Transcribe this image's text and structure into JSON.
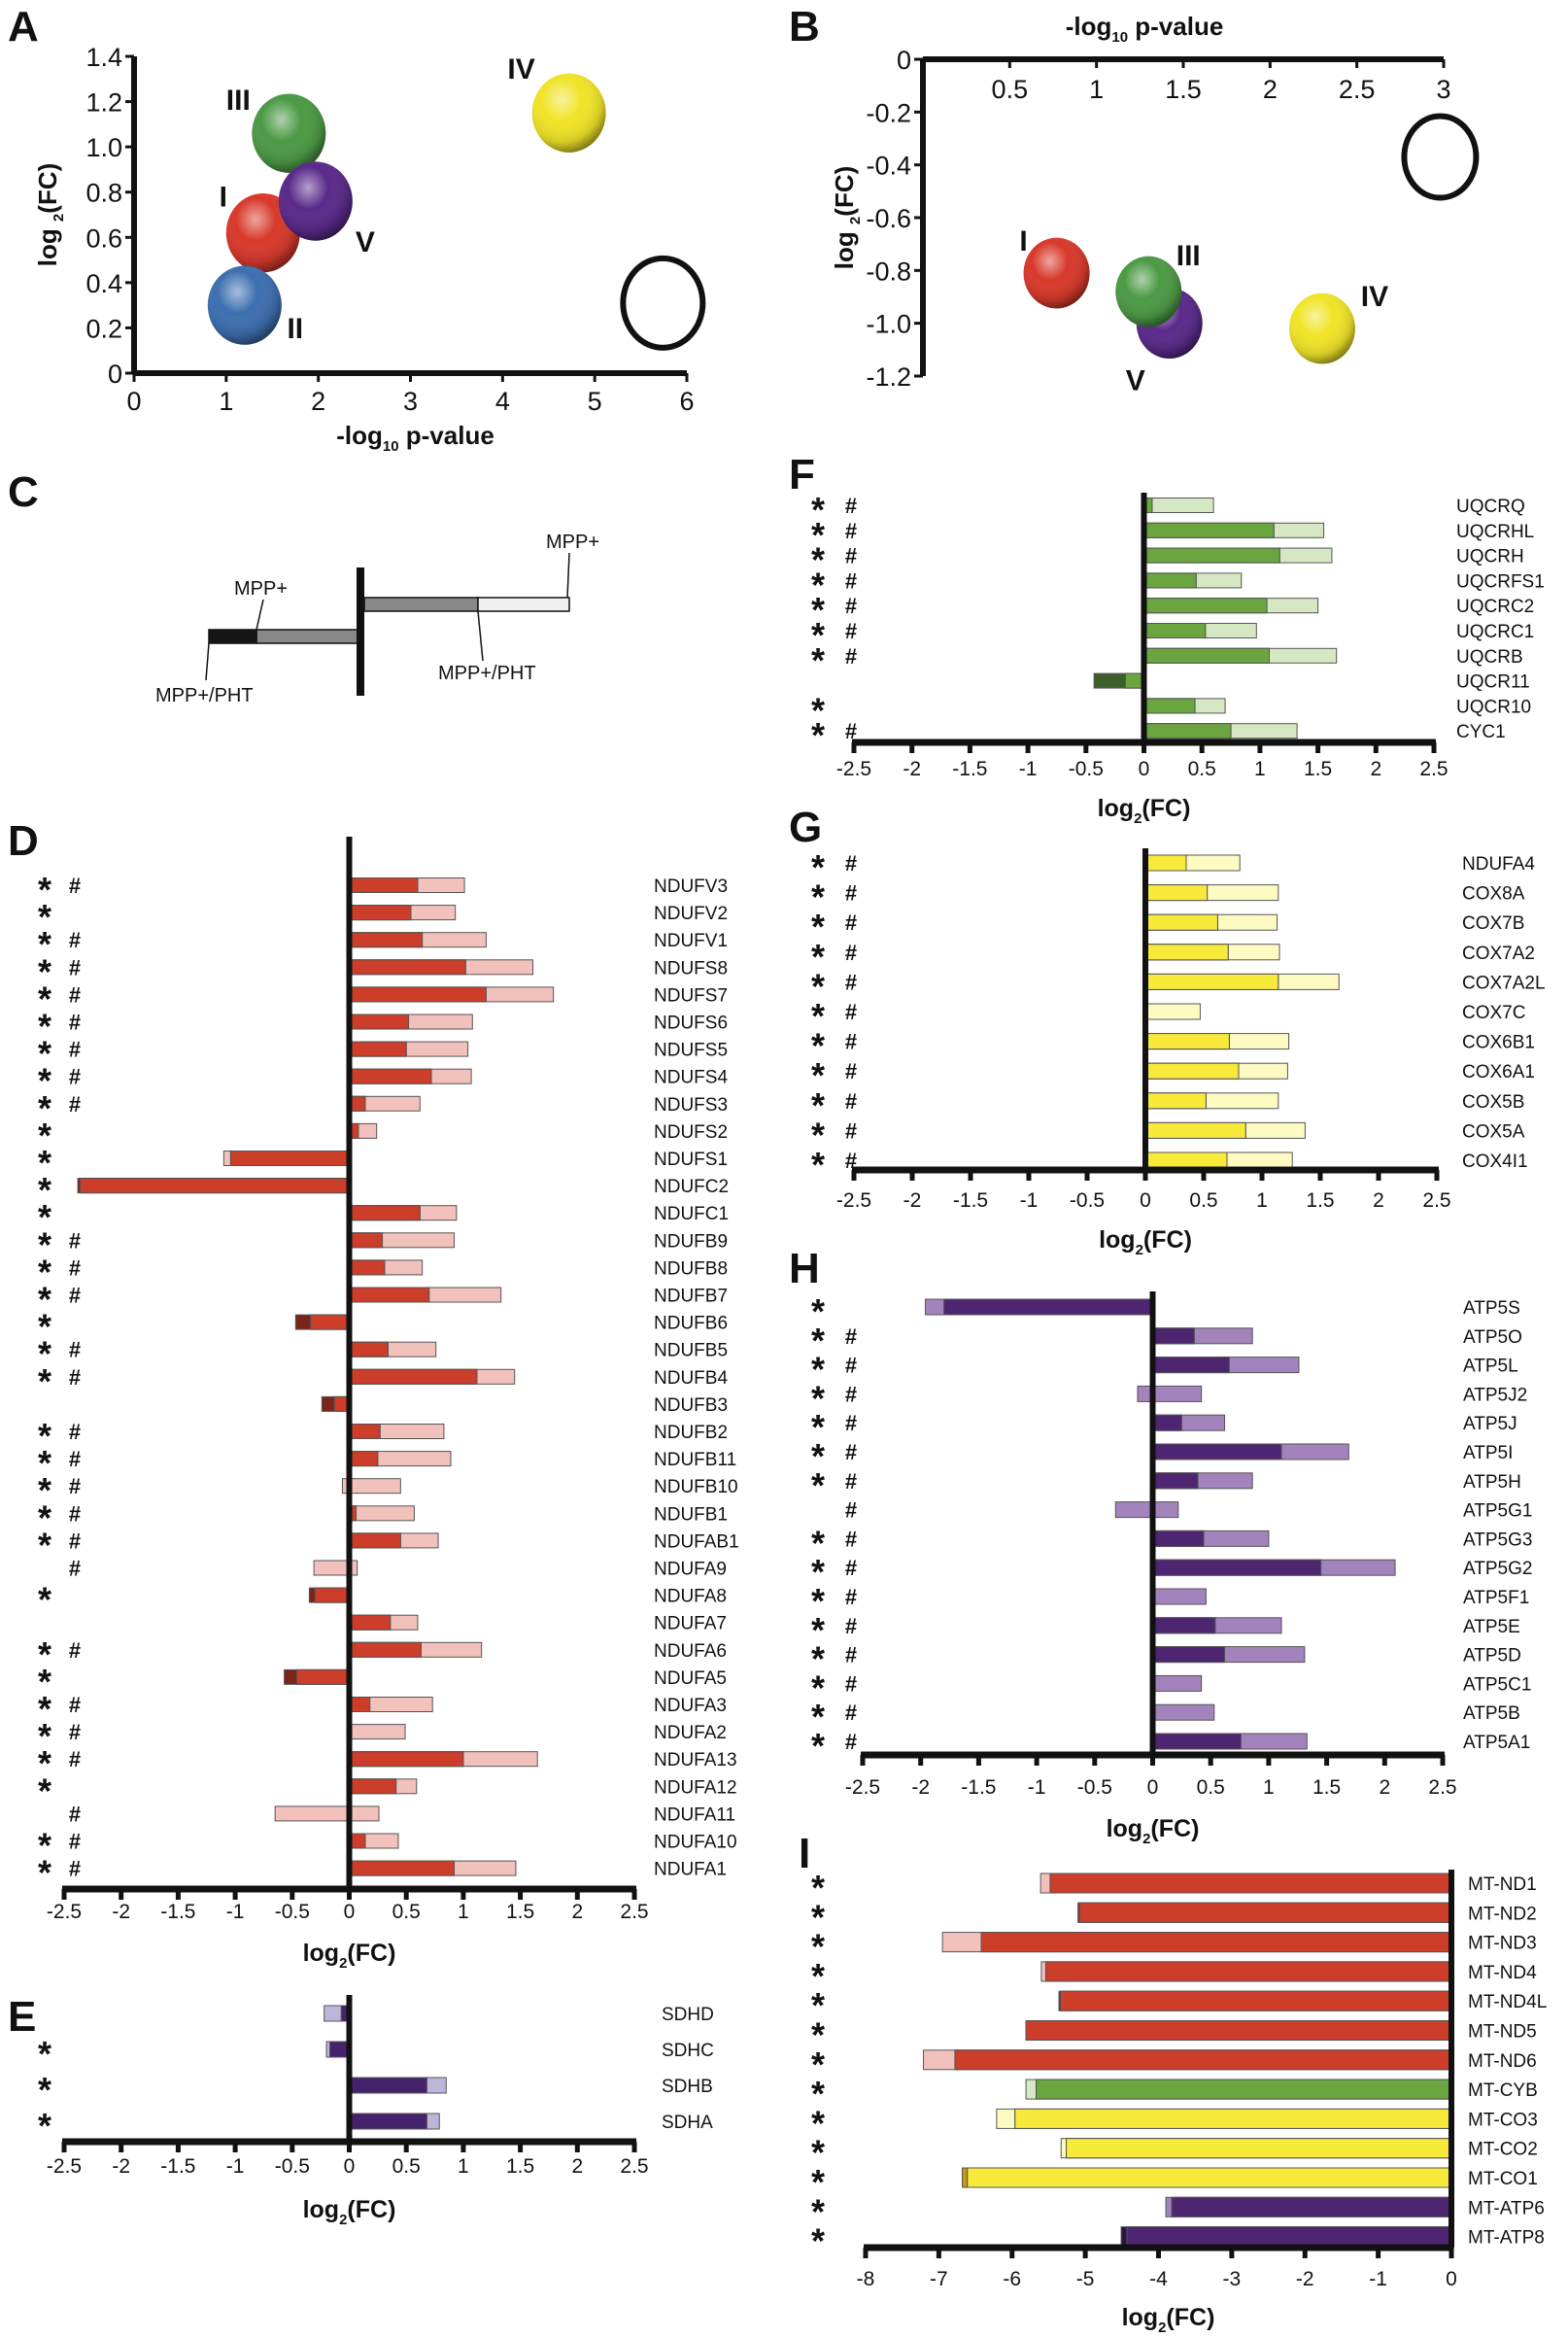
{
  "legend": {
    "panel": "C",
    "mpp_label": "MPP+",
    "pht_label": "MPP+/PHT"
  },
  "colors": {
    "red": {
      "light": "#f2c1bc",
      "mid": "#cc3d2a",
      "dark": "#7a241a"
    },
    "green": {
      "light": "#d6e8c3",
      "mid": "#6ba540",
      "dark": "#3d5f2c"
    },
    "yellow": {
      "light": "#fdfbc2",
      "mid": "#f8ea3a",
      "dark": "#c49a12"
    },
    "purple_e": {
      "light": "#bdb5da",
      "mid": "#45236c",
      "dark": "#2a1445"
    },
    "purple": {
      "light": "#a283bb",
      "mid": "#4e2570",
      "dark": "#2a1445"
    },
    "legend_gray": {
      "light": "#f0f0f0",
      "mid": "#888888",
      "dark": "#151515"
    }
  },
  "chart_data": [
    {
      "panel": "A",
      "type": "scatter",
      "xlabel": {
        "pre": "-log",
        "sub": "10",
        "post": " p-value"
      },
      "ylabel": {
        "pre": "log ",
        "sub": "2",
        "post": "(FC)"
      },
      "xlim": [
        0,
        6
      ],
      "ylim": [
        0,
        1.4
      ],
      "xticks": [
        0,
        1,
        2,
        3,
        4,
        5,
        6
      ],
      "xtick_labels": [
        "0",
        "1",
        "2",
        "3",
        "4",
        "5",
        "6"
      ],
      "yticks": [
        0,
        0.2,
        0.4,
        0.6,
        0.8,
        1.0,
        1.2,
        1.4
      ],
      "ytick_labels": [
        "0",
        "0.2",
        "0.4",
        "0.6",
        "0.8",
        "1.0",
        "1.2",
        "1.4"
      ],
      "points": [
        {
          "label": "III",
          "x": 1.68,
          "y": 1.06,
          "color": "#4c9a45"
        },
        {
          "label": "I",
          "x": 1.4,
          "y": 0.62,
          "color": "#d8392b"
        },
        {
          "label": "V",
          "x": 1.97,
          "y": 0.76,
          "color": "#5a2a8a"
        },
        {
          "label": "II",
          "x": 1.2,
          "y": 0.3,
          "color": "#3d6fb0"
        },
        {
          "label": "IV",
          "x": 4.72,
          "y": 1.15,
          "color": "#f0e428"
        }
      ],
      "reference_circle": {
        "x": 5.74,
        "y": 0.31
      }
    },
    {
      "panel": "B",
      "type": "scatter",
      "xlabel": {
        "pre": "-log",
        "sub": "10",
        "post": " p-value"
      },
      "ylabel": {
        "pre": "log ",
        "sub": "2",
        "post": "(FC)"
      },
      "xlim": [
        0,
        3
      ],
      "ylim": [
        -1.2,
        0
      ],
      "xticks": [
        0.5,
        1,
        1.5,
        2,
        2.5,
        3
      ],
      "xtick_labels": [
        "0.5",
        "1",
        "1.5",
        "2",
        "2.5",
        "3"
      ],
      "yticks": [
        0,
        -0.2,
        -0.4,
        -0.6,
        -0.8,
        -1.0,
        -1.2
      ],
      "ytick_labels": [
        "0",
        "-0.2",
        "-0.4",
        "-0.6",
        "-0.8",
        "-1.0",
        "-1.2"
      ],
      "points": [
        {
          "label": "I",
          "x": 0.77,
          "y": -0.81,
          "color": "#d8392b"
        },
        {
          "label": "V",
          "x": 1.42,
          "y": -1.0,
          "color": "#5a2a8a"
        },
        {
          "label": "III",
          "x": 1.3,
          "y": -0.88,
          "color": "#4c9a45"
        },
        {
          "label": "IV",
          "x": 2.3,
          "y": -1.02,
          "color": "#f0e428"
        }
      ],
      "reference_circle": {
        "x": 2.98,
        "y": -0.37
      }
    },
    {
      "panel": "D",
      "type": "bar",
      "palette": "red",
      "xlabel": {
        "pre": "log",
        "sub": "2",
        "post": "(FC)"
      },
      "xlim": [
        -2.5,
        2.5
      ],
      "xticks": [
        -2.5,
        -2,
        -1.5,
        -1,
        -0.5,
        0,
        0.5,
        1,
        1.5,
        2,
        2.5
      ],
      "xtick_labels": [
        "-2.5",
        "-2",
        "-1.5",
        "-1",
        "-0.5",
        "0",
        "0.5",
        "1",
        "1.5",
        "2",
        "2.5"
      ],
      "genes": [
        "NDUFV3",
        "NDUFV2",
        "NDUFV1",
        "NDUFS8",
        "NDUFS7",
        "NDUFS6",
        "NDUFS5",
        "NDUFS4",
        "NDUFS3",
        "NDUFS2",
        "NDUFS1",
        "NDUFC2",
        "NDUFC1",
        "NDUFB9",
        "NDUFB8",
        "NDUFB7",
        "NDUFB6",
        "NDUFB5",
        "NDUFB4",
        "NDUFB3",
        "NDUFB2",
        "NDUFB11",
        "NDUFB10",
        "NDUFB1",
        "NDUFAB1",
        "NDUFA9",
        "NDUFA8",
        "NDUFA7",
        "NDUFA6",
        "NDUFA5",
        "NDUFA3",
        "NDUFA2",
        "NDUFA13",
        "NDUFA12",
        "NDUFA11",
        "NDUFA10",
        "NDUFA1"
      ],
      "mpp": [
        1.01,
        0.93,
        1.2,
        1.61,
        1.79,
        1.08,
        1.04,
        1.07,
        0.62,
        0.24,
        -1.1,
        -2.36,
        0.94,
        0.92,
        0.64,
        1.33,
        -0.34,
        0.76,
        1.45,
        -0.13,
        0.83,
        0.89,
        0.45,
        0.57,
        0.78,
        -0.31,
        -0.3,
        0.6,
        1.16,
        -0.46,
        0.73,
        0.49,
        1.65,
        0.59,
        0.26,
        0.43,
        1.46
      ],
      "pht": [
        0.6,
        0.54,
        0.64,
        1.02,
        1.2,
        0.52,
        0.5,
        0.72,
        0.14,
        0.08,
        -1.04,
        -2.38,
        0.62,
        0.29,
        0.31,
        0.7,
        -0.47,
        0.34,
        1.12,
        -0.24,
        0.27,
        0.25,
        -0.06,
        0.06,
        0.45,
        0.07,
        -0.35,
        0.36,
        0.63,
        -0.57,
        0.18,
        0,
        1.0,
        0.41,
        -0.65,
        0.14,
        0.92
      ],
      "star": [
        true,
        true,
        true,
        true,
        true,
        true,
        true,
        true,
        true,
        true,
        true,
        true,
        true,
        true,
        true,
        true,
        true,
        true,
        true,
        false,
        true,
        true,
        true,
        true,
        true,
        false,
        true,
        false,
        true,
        true,
        true,
        true,
        true,
        true,
        false,
        true,
        true
      ],
      "hash": [
        true,
        false,
        true,
        true,
        true,
        true,
        true,
        true,
        true,
        false,
        false,
        false,
        false,
        true,
        true,
        true,
        false,
        true,
        true,
        false,
        true,
        true,
        true,
        true,
        true,
        true,
        false,
        false,
        true,
        false,
        true,
        true,
        true,
        false,
        true,
        true,
        true
      ],
      "star_symbol": "*",
      "hash_symbol": "#"
    },
    {
      "panel": "E",
      "type": "bar",
      "palette": "purple_e",
      "xlabel": {
        "pre": "log",
        "sub": "2",
        "post": "(FC)"
      },
      "xlim": [
        -2.5,
        2.5
      ],
      "xticks": [
        -2.5,
        -2,
        -1.5,
        -1,
        -0.5,
        0,
        0.5,
        1,
        1.5,
        2,
        2.5
      ],
      "xtick_labels": [
        "-2.5",
        "-2",
        "-1.5",
        "-1",
        "-0.5",
        "0",
        "0.5",
        "1",
        "1.5",
        "2",
        "2.5"
      ],
      "genes": [
        "SDHD",
        "SDHC",
        "SDHB",
        "SDHA"
      ],
      "mpp": [
        -0.22,
        -0.2,
        0.85,
        0.79
      ],
      "pht": [
        -0.07,
        -0.17,
        0.68,
        0.68
      ],
      "star": [
        false,
        true,
        true,
        true
      ],
      "hash": [
        false,
        false,
        false,
        false
      ],
      "star_symbol": "*",
      "hash_symbol": "#"
    },
    {
      "panel": "F",
      "type": "bar",
      "palette": "green",
      "xlabel": {
        "pre": "log",
        "sub": "2",
        "post": "(FC)"
      },
      "xlim": [
        -2.5,
        2.5
      ],
      "xticks": [
        -2.5,
        -2,
        -1.5,
        -1,
        -0.5,
        0,
        0.5,
        1,
        1.5,
        2,
        2.5
      ],
      "xtick_labels": [
        "-2.5",
        "-2",
        "-1.5",
        "-1",
        "-0.5",
        "0",
        "0.5",
        "1",
        "1.5",
        "2",
        "2.5"
      ],
      "genes": [
        "UQCRQ",
        "UQCRHL",
        "UQCRH",
        "UQCRFS1",
        "UQCRC2",
        "UQCRC1",
        "UQCRB",
        "UQCR11",
        "UQCR10",
        "CYC1"
      ],
      "mpp": [
        0.6,
        1.55,
        1.62,
        0.84,
        1.5,
        0.97,
        1.66,
        -0.16,
        0.7,
        1.32
      ],
      "pht": [
        0.07,
        1.12,
        1.17,
        0.45,
        1.06,
        0.53,
        1.08,
        -0.43,
        0.44,
        0.75
      ],
      "star": [
        true,
        true,
        true,
        true,
        true,
        true,
        true,
        false,
        true,
        true
      ],
      "hash": [
        true,
        true,
        true,
        true,
        true,
        true,
        true,
        false,
        false,
        true
      ],
      "star_symbol": "*",
      "hash_symbol": "#"
    },
    {
      "panel": "G",
      "type": "bar",
      "palette": "yellow",
      "xlabel": {
        "pre": "log",
        "sub": "2",
        "post": "(FC)"
      },
      "xlim": [
        -2.5,
        2.5
      ],
      "xticks": [
        -2.5,
        -2,
        -1.5,
        -1,
        -0.5,
        0,
        0.5,
        1,
        1.5,
        2,
        2.5
      ],
      "xtick_labels": [
        "-2.5",
        "-2",
        "-1.5",
        "-1",
        "-0.5",
        "0",
        "0.5",
        "1",
        "1.5",
        "2",
        "2.5"
      ],
      "genes": [
        "NDUFA4",
        "COX8A",
        "COX7B",
        "COX7A2",
        "COX7A2L",
        "COX7C",
        "COX6B1",
        "COX6A1",
        "COX5B",
        "COX5A",
        "COX4I1"
      ],
      "mpp": [
        0.81,
        1.14,
        1.13,
        1.15,
        1.66,
        0.47,
        1.23,
        1.22,
        1.14,
        1.37,
        1.26
      ],
      "pht": [
        0.35,
        0.53,
        0.62,
        0.71,
        1.14,
        0,
        0.72,
        0.8,
        0.52,
        0.86,
        0.7
      ],
      "star": [
        true,
        true,
        true,
        true,
        true,
        true,
        true,
        true,
        true,
        true,
        true
      ],
      "hash": [
        true,
        true,
        true,
        true,
        true,
        true,
        true,
        true,
        true,
        true,
        true
      ],
      "star_symbol": "*",
      "hash_symbol": "#"
    },
    {
      "panel": "H",
      "type": "bar",
      "palette": "purple",
      "xlabel": {
        "pre": "log",
        "sub": "2",
        "post": "(FC)"
      },
      "xlim": [
        -2.5,
        2.5
      ],
      "xticks": [
        -2.5,
        -2,
        -1.5,
        -1,
        -0.5,
        0,
        0.5,
        1,
        1.5,
        2,
        2.5
      ],
      "xtick_labels": [
        "-2.5",
        "-2",
        "-1.5",
        "-1",
        "-0.5",
        "0",
        "0.5",
        "1",
        "1.5",
        "2",
        "2.5"
      ],
      "genes": [
        "ATP5S",
        "ATP5O",
        "ATP5L",
        "ATP5J2",
        "ATP5J",
        "ATP5I",
        "ATP5H",
        "ATP5G1",
        "ATP5G3",
        "ATP5G2",
        "ATP5F1",
        "ATP5E",
        "ATP5D",
        "ATP5C1",
        "ATP5B",
        "ATP5A1"
      ],
      "mpp": [
        -1.96,
        0.86,
        1.26,
        0.42,
        0.62,
        1.69,
        0.86,
        0.22,
        1.0,
        2.09,
        0.46,
        1.11,
        1.31,
        0.42,
        0.53,
        1.33
      ],
      "pht": [
        -1.8,
        0.36,
        0.66,
        -0.13,
        0.25,
        1.11,
        0.39,
        -0.32,
        0.44,
        1.45,
        0,
        0.54,
        0.62,
        0,
        0,
        0.76
      ],
      "star": [
        true,
        true,
        true,
        true,
        true,
        true,
        true,
        false,
        true,
        true,
        true,
        true,
        true,
        true,
        true,
        true
      ],
      "hash": [
        false,
        true,
        true,
        true,
        true,
        true,
        true,
        true,
        true,
        true,
        true,
        true,
        true,
        true,
        true,
        true
      ],
      "star_symbol": "*",
      "hash_symbol": "#"
    },
    {
      "panel": "I",
      "type": "bar",
      "xlabel": {
        "pre": "log",
        "sub": "2",
        "post": "(FC)"
      },
      "xlim": [
        -8,
        0
      ],
      "xticks": [
        -8,
        -7,
        -6,
        -5,
        -4,
        -3,
        -2,
        -1,
        0
      ],
      "xtick_labels": [
        "-8",
        "-7",
        "-6",
        "-5",
        "-4",
        "-3",
        "-2",
        "-1",
        "0"
      ],
      "genes": [
        "MT-ND1",
        "MT-ND2",
        "MT-ND3",
        "MT-ND4",
        "MT-ND4L",
        "MT-ND5",
        "MT-ND6",
        "MT-CYB",
        "MT-CO3",
        "MT-CO2",
        "MT-CO1",
        "MT-ATP6",
        "MT-ATP8"
      ],
      "groups": [
        "red",
        "red",
        "red",
        "red",
        "red",
        "red",
        "red",
        "green",
        "yellow",
        "yellow",
        "yellow",
        "purple",
        "purple"
      ],
      "mpp": [
        -5.61,
        -5.08,
        -6.95,
        -5.6,
        -5.34,
        -5.81,
        -7.21,
        -5.81,
        -6.21,
        -5.33,
        -6.61,
        -3.9,
        -4.43
      ],
      "pht": [
        -5.48,
        -5.1,
        -6.42,
        -5.54,
        -5.36,
        -5.81,
        -6.78,
        -5.67,
        -5.96,
        -5.26,
        -6.68,
        -3.82,
        -4.51
      ],
      "star": [
        true,
        true,
        true,
        true,
        true,
        true,
        true,
        true,
        true,
        true,
        true,
        true,
        true
      ],
      "hash": [
        false,
        false,
        false,
        false,
        false,
        false,
        false,
        false,
        false,
        false,
        false,
        false,
        false
      ],
      "star_symbol": "*",
      "hash_symbol": "#"
    }
  ]
}
